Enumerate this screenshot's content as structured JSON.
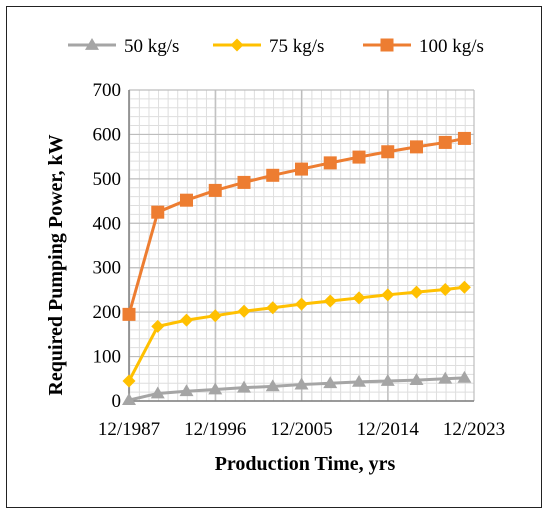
{
  "chart_data": {
    "type": "line",
    "title": "",
    "xlabel": "Production Time, yrs",
    "ylabel": "Required Pumping Power, kW",
    "xlim": [
      "12/1987",
      "12/2023"
    ],
    "ylim": [
      0,
      700
    ],
    "y_ticks": [
      0,
      100,
      200,
      300,
      400,
      500,
      600,
      700
    ],
    "x_tick_labels": [
      "12/1987",
      "12/1996",
      "12/2005",
      "12/2014",
      "12/2023"
    ],
    "grid": true,
    "legend_position": "top",
    "x_dates": [
      "12/1987",
      "12/1990",
      "12/1993",
      "12/1996",
      "12/1999",
      "12/2002",
      "12/2005",
      "12/2008",
      "12/2011",
      "12/2014",
      "12/2017",
      "12/2020",
      "12/2022"
    ],
    "series": [
      {
        "name": "50 kg/s",
        "color": "#a5a5a5",
        "marker": "triangle",
        "values": [
          2,
          17,
          22,
          26,
          30,
          33,
          37,
          40,
          43,
          45,
          47,
          50,
          52
        ]
      },
      {
        "name": "75 kg/s",
        "color": "#ffc000",
        "marker": "diamond",
        "values": [
          45,
          168,
          182,
          192,
          202,
          210,
          218,
          225,
          232,
          239,
          245,
          251,
          256
        ]
      },
      {
        "name": "100 kg/s",
        "color": "#ed7d31",
        "marker": "square",
        "values": [
          195,
          425,
          452,
          474,
          492,
          508,
          522,
          536,
          549,
          561,
          572,
          582,
          591
        ]
      }
    ]
  }
}
